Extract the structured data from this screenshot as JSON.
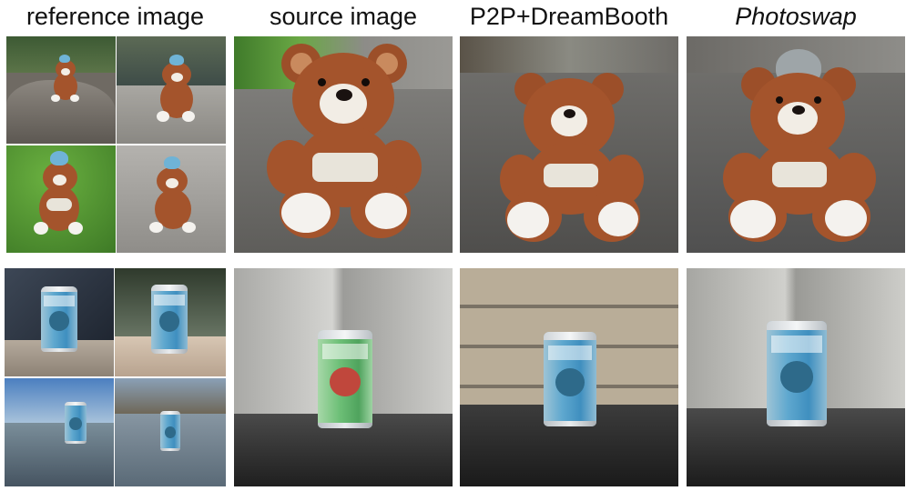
{
  "headers": {
    "col0": "reference image",
    "col1": "source image",
    "col2": "P2P+DreamBooth",
    "col3": "Photoswap"
  },
  "colors": {
    "bear_fur": "#a4542c",
    "sky_blue_hat": "#6fb3d6",
    "can_blue": "#3f8fbf",
    "can_green": "#4fa35d"
  }
}
